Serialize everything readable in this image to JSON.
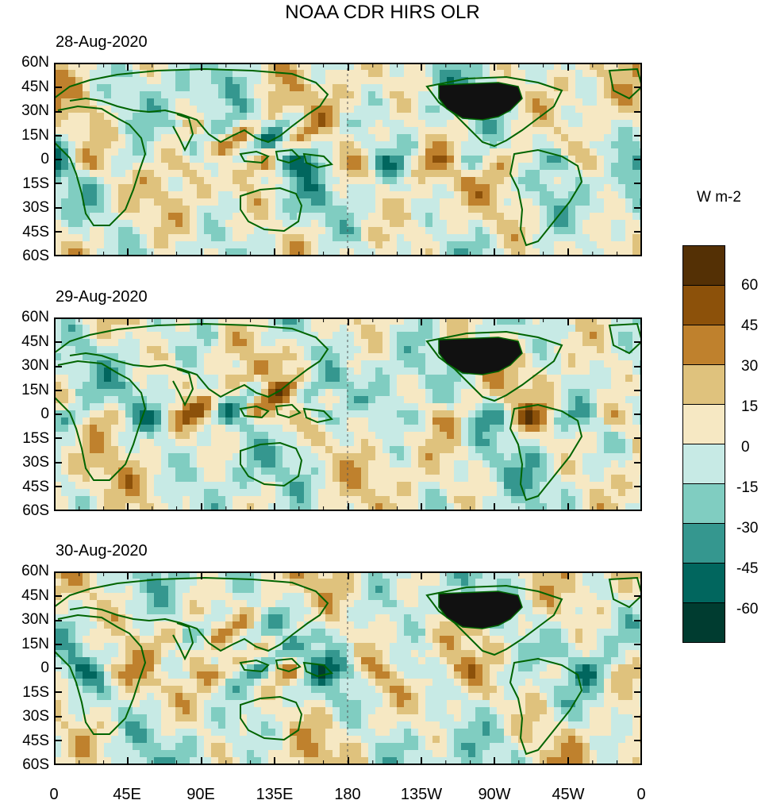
{
  "title": "NOAA CDR HIRS OLR",
  "panels": [
    {
      "date": "28-Aug-2020"
    },
    {
      "date": "29-Aug-2020"
    },
    {
      "date": "30-Aug-2020"
    }
  ],
  "lat_labels": [
    "60N",
    "45N",
    "30N",
    "15N",
    "0",
    "15S",
    "30S",
    "45S",
    "60S"
  ],
  "lon_labels": [
    "0",
    "45E",
    "90E",
    "135E",
    "180",
    "135W",
    "90W",
    "45W",
    "0"
  ],
  "colorbar": {
    "unit": "W m-2",
    "labels": [
      "60",
      "45",
      "30",
      "15",
      "0",
      "-15",
      "-30",
      "-45",
      "-60"
    ],
    "colors": [
      "#543005",
      "#8c510a",
      "#bf812d",
      "#dfc27d",
      "#f6e8c3",
      "#c7eae5",
      "#80cdc1",
      "#35978f",
      "#01665e",
      "#003c30"
    ]
  },
  "map": {
    "coast_color": "#006400",
    "land_fill_usa": "#111111"
  }
}
